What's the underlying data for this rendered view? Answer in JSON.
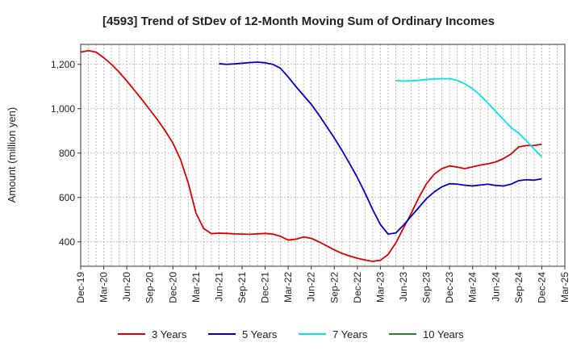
{
  "chart_data": {
    "type": "line",
    "title": "[4593]  Trend of StDev of 12-Month Moving Sum of Ordinary Incomes",
    "xlabel": "",
    "ylabel": "Amount (million yen)",
    "ylim": [
      290,
      1290
    ],
    "y_ticks": [
      400,
      600,
      800,
      1000,
      1200
    ],
    "y_tick_labels": [
      "400",
      "600",
      "800",
      "1,000",
      "1,200"
    ],
    "x_ticks": [
      "2019-12",
      "2020-03",
      "2020-06",
      "2020-09",
      "2020-12",
      "2021-03",
      "2021-06",
      "2021-09",
      "2021-12",
      "2022-03",
      "2022-06",
      "2022-09",
      "2022-12",
      "2023-03",
      "2023-06",
      "2023-09",
      "2023-12",
      "2024-03",
      "2024-06",
      "2024-09",
      "2024-12",
      "2025-03"
    ],
    "x_tick_labels": [
      "Dec-19",
      "Mar-20",
      "Jun-20",
      "Sep-20",
      "Dec-20",
      "Mar-21",
      "Jun-21",
      "Sep-21",
      "Dec-21",
      "Mar-22",
      "Jun-22",
      "Sep-22",
      "Dec-22",
      "Mar-23",
      "Jun-23",
      "Sep-23",
      "Dec-23",
      "Mar-24",
      "Jun-24",
      "Sep-24",
      "Dec-24",
      "Mar-25"
    ],
    "xlim": [
      "2019-12",
      "2025-03"
    ],
    "grid": true,
    "legend_position": "bottom",
    "series": [
      {
        "name": "3 Years",
        "color": "#dd0000",
        "x": [
          "2019-12",
          "2020-01",
          "2020-02",
          "2020-03",
          "2020-04",
          "2020-05",
          "2020-06",
          "2020-07",
          "2020-08",
          "2020-09",
          "2020-10",
          "2020-11",
          "2020-12",
          "2021-01",
          "2021-02",
          "2021-03",
          "2021-04",
          "2021-05",
          "2021-06",
          "2021-07",
          "2021-08",
          "2021-09",
          "2021-10",
          "2021-11",
          "2021-12",
          "2022-01",
          "2022-02",
          "2022-03",
          "2022-04",
          "2022-05",
          "2022-06",
          "2022-07",
          "2022-08",
          "2022-09",
          "2022-10",
          "2022-11",
          "2022-12",
          "2023-01",
          "2023-02",
          "2023-03",
          "2023-04",
          "2023-05",
          "2023-06",
          "2023-07",
          "2023-08",
          "2023-09",
          "2023-10",
          "2023-11",
          "2023-12",
          "2024-01",
          "2024-02",
          "2024-03",
          "2024-04",
          "2024-05",
          "2024-06",
          "2024-07",
          "2024-08",
          "2024-09",
          "2024-10",
          "2024-11",
          "2024-12"
        ],
        "values": [
          1255,
          1262,
          1255,
          1230,
          1200,
          1165,
          1125,
          1083,
          1040,
          995,
          950,
          900,
          845,
          770,
          665,
          530,
          460,
          437,
          439,
          438,
          436,
          435,
          434,
          436,
          438,
          435,
          425,
          408,
          412,
          422,
          416,
          400,
          382,
          364,
          348,
          336,
          326,
          318,
          312,
          317,
          343,
          395,
          462,
          528,
          600,
          662,
          705,
          730,
          742,
          737,
          730,
          738,
          746,
          752,
          760,
          775,
          796,
          828,
          834,
          834,
          840
        ]
      },
      {
        "name": "5 Years",
        "color": "#0000cc",
        "x": [
          "2021-06",
          "2021-07",
          "2021-08",
          "2021-09",
          "2021-10",
          "2021-11",
          "2021-12",
          "2022-01",
          "2022-02",
          "2022-03",
          "2022-04",
          "2022-05",
          "2022-06",
          "2022-07",
          "2022-08",
          "2022-09",
          "2022-10",
          "2022-11",
          "2022-12",
          "2023-01",
          "2023-02",
          "2023-03",
          "2023-04",
          "2023-05",
          "2023-06",
          "2023-07",
          "2023-08",
          "2023-09",
          "2023-10",
          "2023-11",
          "2023-12",
          "2024-01",
          "2024-02",
          "2024-03",
          "2024-04",
          "2024-05",
          "2024-06",
          "2024-07",
          "2024-08",
          "2024-09",
          "2024-10",
          "2024-11",
          "2024-12"
        ],
        "values": [
          1203,
          1200,
          1202,
          1205,
          1208,
          1210,
          1207,
          1200,
          1182,
          1143,
          1100,
          1060,
          1020,
          972,
          920,
          868,
          812,
          752,
          690,
          620,
          545,
          478,
          435,
          440,
          475,
          515,
          555,
          595,
          625,
          648,
          662,
          660,
          655,
          652,
          656,
          660,
          654,
          652,
          660,
          676,
          680,
          678,
          684
        ]
      },
      {
        "name": "7 Years",
        "color": "#00e5ee",
        "x": [
          "2023-05",
          "2023-06",
          "2023-07",
          "2023-08",
          "2023-09",
          "2023-10",
          "2023-11",
          "2023-12",
          "2024-01",
          "2024-02",
          "2024-03",
          "2024-04",
          "2024-05",
          "2024-06",
          "2024-07",
          "2024-08",
          "2024-09",
          "2024-10",
          "2024-11",
          "2024-12"
        ],
        "values": [
          1127,
          1125,
          1126,
          1128,
          1132,
          1134,
          1135,
          1135,
          1128,
          1112,
          1090,
          1060,
          1025,
          988,
          952,
          915,
          890,
          855,
          818,
          783
        ]
      },
      {
        "name": "10 Years",
        "color": "#228b22",
        "x": [],
        "values": []
      }
    ]
  }
}
